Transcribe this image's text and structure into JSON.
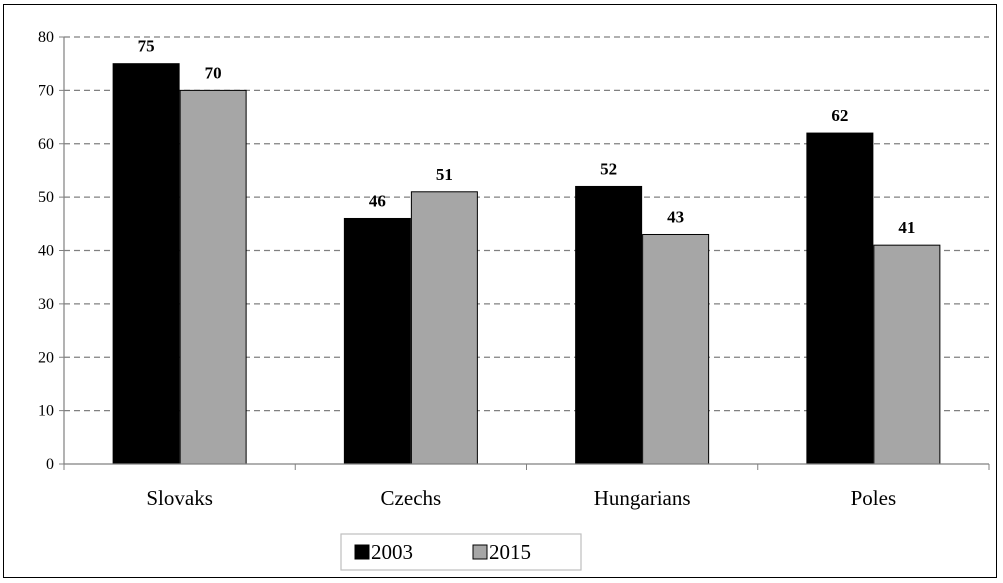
{
  "chart_data": {
    "type": "bar",
    "title": "",
    "xlabel": "",
    "ylabel": "",
    "categories": [
      "Slovaks",
      "Czechs",
      "Hungarians",
      "Poles"
    ],
    "series": [
      {
        "name": "2003",
        "values": [
          75,
          46,
          52,
          62
        ],
        "color": "#000000"
      },
      {
        "name": "2015",
        "values": [
          70,
          51,
          43,
          41
        ],
        "color": "#a6a6a6"
      }
    ],
    "ylim": [
      0,
      80
    ],
    "yticks": [
      0,
      10,
      20,
      30,
      40,
      50,
      60,
      70,
      80
    ],
    "grid": true,
    "grid_style": "dashed",
    "legend_position": "bottom",
    "data_labels": true
  }
}
